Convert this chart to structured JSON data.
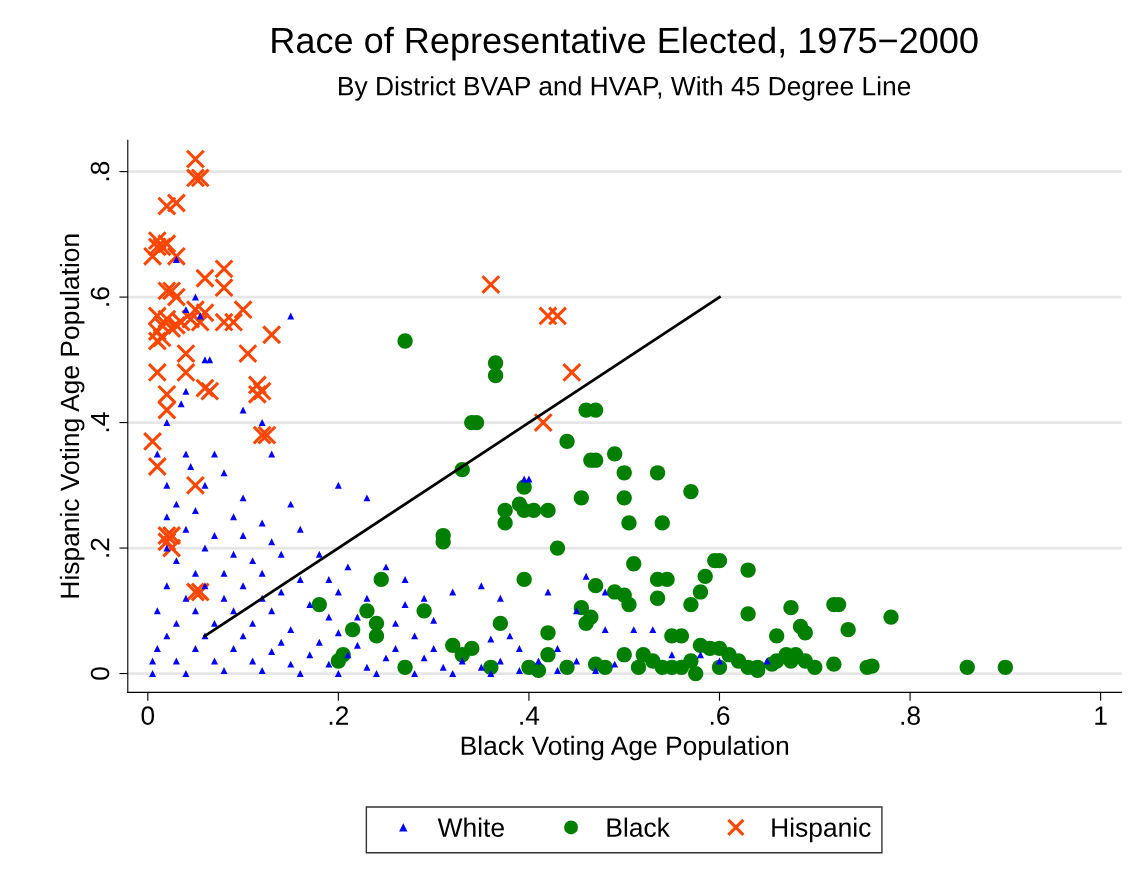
{
  "chart_data": {
    "type": "scatter",
    "title": "Race of Representative Elected, 1975−2000",
    "subtitle": "By District BVAP and HVAP, With 45 Degree Line",
    "xlabel": "Black Voting Age Population",
    "ylabel": "Hispanic Voting Age Population",
    "xlim": [
      -0.021,
      1.022
    ],
    "ylim": [
      -0.03,
      0.85
    ],
    "xticks": [
      0,
      {
        "value": 0.2,
        "label": ".2"
      },
      {
        "value": 0.4,
        "label": ".4"
      },
      {
        "value": 0.6,
        "label": ".6"
      },
      {
        "value": 0.8,
        "label": ".8"
      },
      1
    ],
    "yticks": [
      0,
      {
        "value": 0.2,
        "label": ".2"
      },
      {
        "value": 0.4,
        "label": ".4"
      },
      {
        "value": 0.6,
        "label": ".6"
      },
      {
        "value": 0.8,
        "label": ".8"
      }
    ],
    "grid": "y",
    "legend": "bottom",
    "series": [
      {
        "name": "White",
        "color": "#0000ff",
        "marker": "triangle",
        "x": [
          0.03,
          0.05,
          0.06,
          0.065,
          0.04,
          0.055,
          0.15,
          0.035,
          0.02,
          0.01,
          0.04,
          0.1,
          0.13,
          0.12,
          0.04,
          0.045,
          0.07,
          0.02,
          0.06,
          0.08,
          0.2,
          0.23,
          0.1,
          0.15,
          0.03,
          0.05,
          0.09,
          0.02,
          0.12,
          0.16,
          0.04,
          0.07,
          0.1,
          0.13,
          0.02,
          0.06,
          0.09,
          0.14,
          0.18,
          0.03,
          0.11,
          0.21,
          0.25,
          0.05,
          0.08,
          0.12,
          0.16,
          0.19,
          0.02,
          0.06,
          0.1,
          0.14,
          0.2,
          0.23,
          0.27,
          0.04,
          0.08,
          0.12,
          0.17,
          0.01,
          0.05,
          0.09,
          0.13,
          0.19,
          0.22,
          0.26,
          0.3,
          0.03,
          0.07,
          0.11,
          0.15,
          0.2,
          0.28,
          0.36,
          0.38,
          0.02,
          0.06,
          0.1,
          0.14,
          0.18,
          0.22,
          0.26,
          0.3,
          0.39,
          0.43,
          0.01,
          0.05,
          0.09,
          0.13,
          0.17,
          0.21,
          0.25,
          0.29,
          0.33,
          0.37,
          0.41,
          0.45,
          0.49,
          0.005,
          0.03,
          0.07,
          0.11,
          0.15,
          0.19,
          0.23,
          0.31,
          0.35,
          0.39,
          0.43,
          0.47,
          0.005,
          0.04,
          0.08,
          0.12,
          0.16,
          0.2,
          0.24,
          0.28,
          0.32,
          0.36,
          0.4,
          0.395,
          0.46,
          0.48,
          0.53,
          0.51,
          0.55,
          0.58,
          0.6,
          0.65,
          0.35,
          0.37,
          0.29,
          0.32,
          0.27,
          0.45,
          0.42,
          0.48
        ],
        "values": [
          0.66,
          0.6,
          0.5,
          0.5,
          0.58,
          0.57,
          0.57,
          0.43,
          0.4,
          0.35,
          0.45,
          0.42,
          0.35,
          0.4,
          0.35,
          0.33,
          0.35,
          0.3,
          0.3,
          0.32,
          0.3,
          0.28,
          0.28,
          0.27,
          0.27,
          0.26,
          0.25,
          0.25,
          0.24,
          0.23,
          0.23,
          0.22,
          0.22,
          0.21,
          0.2,
          0.2,
          0.19,
          0.19,
          0.19,
          0.18,
          0.18,
          0.17,
          0.17,
          0.16,
          0.16,
          0.16,
          0.15,
          0.15,
          0.14,
          0.14,
          0.14,
          0.13,
          0.13,
          0.12,
          0.11,
          0.12,
          0.12,
          0.12,
          0.11,
          0.1,
          0.1,
          0.1,
          0.1,
          0.09,
          0.09,
          0.08,
          0.085,
          0.08,
          0.08,
          0.08,
          0.07,
          0.065,
          0.06,
          0.055,
          0.06,
          0.06,
          0.06,
          0.06,
          0.05,
          0.05,
          0.045,
          0.04,
          0.04,
          0.04,
          0.04,
          0.04,
          0.04,
          0.04,
          0.035,
          0.03,
          0.03,
          0.025,
          0.025,
          0.02,
          0.02,
          0.02,
          0.02,
          0.015,
          0.02,
          0.02,
          0.02,
          0.02,
          0.015,
          0.015,
          0.01,
          0.01,
          0.01,
          0.005,
          0.005,
          0.005,
          0.0,
          0.0,
          0.005,
          0.005,
          0.0,
          0.0,
          0.0,
          0.0,
          0.0,
          0.0,
          0.31,
          0.31,
          0.155,
          0.13,
          0.07,
          0.07,
          0.03,
          0.03,
          0.02,
          0.02,
          0.14,
          0.12,
          0.12,
          0.13,
          0.15,
          0.1,
          0.13,
          0.07
        ]
      },
      {
        "name": "Black",
        "color": "#007f00",
        "marker": "circle",
        "x": [
          0.27,
          0.365,
          0.365,
          0.34,
          0.345,
          0.46,
          0.47,
          0.44,
          0.33,
          0.49,
          0.465,
          0.47,
          0.5,
          0.535,
          0.57,
          0.395,
          0.375,
          0.39,
          0.395,
          0.405,
          0.42,
          0.455,
          0.5,
          0.375,
          0.505,
          0.54,
          0.31,
          0.31,
          0.43,
          0.595,
          0.6,
          0.51,
          0.63,
          0.585,
          0.535,
          0.545,
          0.395,
          0.245,
          0.47,
          0.49,
          0.58,
          0.5,
          0.535,
          0.18,
          0.455,
          0.505,
          0.57,
          0.675,
          0.72,
          0.725,
          0.29,
          0.23,
          0.465,
          0.78,
          0.63,
          0.46,
          0.24,
          0.37,
          0.685,
          0.735,
          0.215,
          0.24,
          0.42,
          0.55,
          0.56,
          0.66,
          0.69,
          0.2,
          0.205,
          0.27,
          0.32,
          0.34,
          0.36,
          0.4,
          0.42,
          0.44,
          0.48,
          0.5,
          0.52,
          0.53,
          0.55,
          0.56,
          0.57,
          0.58,
          0.59,
          0.6,
          0.61,
          0.62,
          0.63,
          0.64,
          0.66,
          0.67,
          0.68,
          0.69,
          0.7,
          0.72,
          0.755,
          0.76,
          0.86,
          0.9,
          0.575,
          0.64,
          0.54,
          0.47,
          0.41,
          0.33,
          0.515,
          0.6,
          0.655,
          0.675
        ],
        "values": [
          0.53,
          0.495,
          0.475,
          0.4,
          0.4,
          0.42,
          0.42,
          0.37,
          0.325,
          0.35,
          0.34,
          0.34,
          0.32,
          0.32,
          0.29,
          0.297,
          0.26,
          0.27,
          0.26,
          0.26,
          0.26,
          0.28,
          0.28,
          0.24,
          0.24,
          0.24,
          0.22,
          0.21,
          0.2,
          0.18,
          0.18,
          0.175,
          0.165,
          0.155,
          0.15,
          0.15,
          0.15,
          0.15,
          0.14,
          0.13,
          0.13,
          0.125,
          0.12,
          0.11,
          0.105,
          0.11,
          0.11,
          0.105,
          0.11,
          0.11,
          0.1,
          0.1,
          0.09,
          0.09,
          0.095,
          0.08,
          0.08,
          0.08,
          0.075,
          0.07,
          0.07,
          0.06,
          0.065,
          0.06,
          0.06,
          0.06,
          0.065,
          0.02,
          0.03,
          0.01,
          0.045,
          0.04,
          0.01,
          0.01,
          0.03,
          0.01,
          0.01,
          0.03,
          0.03,
          0.02,
          0.01,
          0.01,
          0.02,
          0.045,
          0.04,
          0.04,
          0.03,
          0.02,
          0.01,
          0.01,
          0.02,
          0.03,
          0.03,
          0.02,
          0.01,
          0.015,
          0.01,
          0.012,
          0.01,
          0.01,
          0.0,
          0.005,
          0.01,
          0.015,
          0.005,
          0.03,
          0.01,
          0.01,
          0.015,
          0.02
        ]
      },
      {
        "name": "Hispanic",
        "color": "#ff4500",
        "marker": "cross",
        "x": [
          0.05,
          0.05,
          0.055,
          0.02,
          0.03,
          0.005,
          0.01,
          0.015,
          0.01,
          0.02,
          0.03,
          0.06,
          0.08,
          0.08,
          0.02,
          0.025,
          0.03,
          0.01,
          0.015,
          0.02,
          0.035,
          0.025,
          0.045,
          0.05,
          0.055,
          0.06,
          0.08,
          0.09,
          0.1,
          0.01,
          0.01,
          0.015,
          0.03,
          0.04,
          0.105,
          0.13,
          0.01,
          0.04,
          0.02,
          0.06,
          0.065,
          0.115,
          0.115,
          0.12,
          0.02,
          0.12,
          0.125,
          0.005,
          0.01,
          0.05,
          0.02,
          0.025,
          0.025,
          0.02,
          0.05,
          0.055,
          0.36,
          0.42,
          0.43,
          0.445,
          0.415
        ],
        "values": [
          0.82,
          0.79,
          0.79,
          0.745,
          0.75,
          0.665,
          0.69,
          0.68,
          0.68,
          0.685,
          0.665,
          0.63,
          0.645,
          0.615,
          0.61,
          0.61,
          0.6,
          0.57,
          0.555,
          0.565,
          0.56,
          0.55,
          0.565,
          0.58,
          0.56,
          0.575,
          0.56,
          0.56,
          0.58,
          0.545,
          0.53,
          0.535,
          0.555,
          0.51,
          0.51,
          0.54,
          0.48,
          0.48,
          0.445,
          0.455,
          0.45,
          0.46,
          0.445,
          0.45,
          0.42,
          0.38,
          0.38,
          0.37,
          0.33,
          0.3,
          0.22,
          0.22,
          0.2,
          0.21,
          0.13,
          0.13,
          0.62,
          0.57,
          0.57,
          0.48,
          0.4
        ]
      },
      {
        "type": "line",
        "color": "#000000",
        "marker": "none",
        "x": [
          0.06,
          0.6
        ],
        "values": [
          0.06,
          0.6
        ]
      }
    ]
  }
}
